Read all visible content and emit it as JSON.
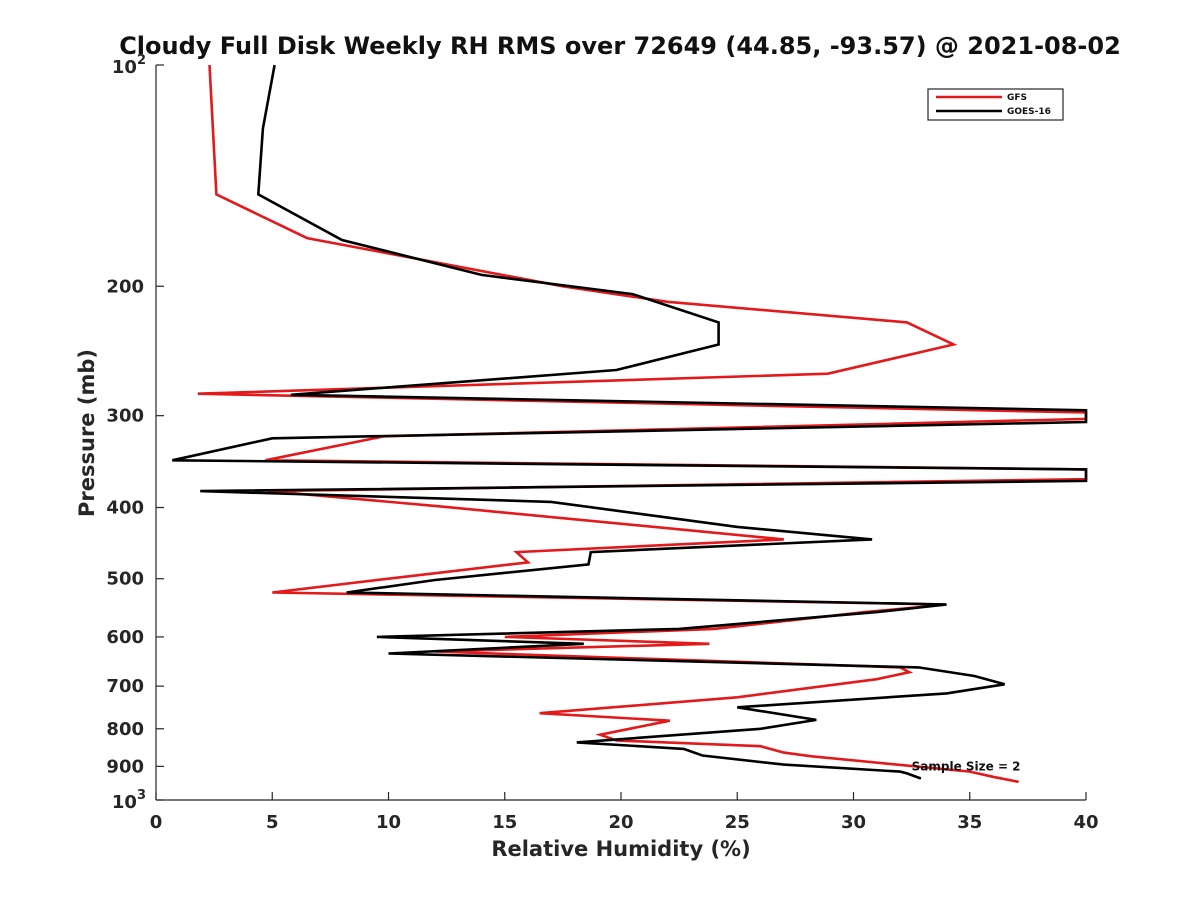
{
  "chart_data": {
    "type": "line",
    "title": "Cloudy Full Disk Weekly RH RMS over 72649 (44.85, -93.57) @ 2021-08-02",
    "xlabel": "Relative Humidity (%)",
    "ylabel": "Pressure (mb)",
    "xlim": [
      0,
      40
    ],
    "ylim": [
      100,
      1000
    ],
    "y_scale": "log",
    "y_reversed": true,
    "grid": false,
    "legend_position": "top-right",
    "x_ticks": [
      "0",
      "5",
      "10",
      "15",
      "20",
      "25",
      "30",
      "35",
      "40"
    ],
    "y_ticks": [
      {
        "value": 200,
        "label": "200"
      },
      {
        "value": 300,
        "label": "300"
      },
      {
        "value": 400,
        "label": "400"
      },
      {
        "value": 500,
        "label": "500"
      },
      {
        "value": 600,
        "label": "600"
      },
      {
        "value": 700,
        "label": "700"
      },
      {
        "value": 800,
        "label": "800"
      },
      {
        "value": 900,
        "label": "900"
      }
    ],
    "y_ticks_power": [
      {
        "value": 100,
        "base": "10",
        "exp": "2"
      },
      {
        "value": 1000,
        "base": "10",
        "exp": "3"
      }
    ],
    "annotation": {
      "text": "Sample Size = 2",
      "x": 32.5,
      "y": 900
    },
    "series": [
      {
        "name": "GFS",
        "color": "#e31a1c",
        "points": [
          [
            2.3,
            100
          ],
          [
            2.6,
            150
          ],
          [
            6.5,
            172
          ],
          [
            17.5,
            200
          ],
          [
            22.0,
            210
          ],
          [
            32.3,
            224
          ],
          [
            34.3,
            240
          ],
          [
            28.9,
            263
          ],
          [
            1.8,
            280
          ],
          [
            40,
            297
          ],
          [
            40,
            303
          ],
          [
            9.8,
            320
          ],
          [
            4.7,
            345
          ],
          [
            40,
            355
          ],
          [
            40,
            366
          ],
          [
            4.8,
            380
          ],
          [
            12.0,
            398
          ],
          [
            27.0,
            442
          ],
          [
            15.5,
            460
          ],
          [
            16.0,
            475
          ],
          [
            10.0,
            500
          ],
          [
            5.0,
            522
          ],
          [
            34.0,
            542
          ],
          [
            30.5,
            555
          ],
          [
            24.0,
            585
          ],
          [
            15.0,
            600
          ],
          [
            23.8,
            613
          ],
          [
            12.0,
            628
          ],
          [
            32.0,
            660
          ],
          [
            32.4,
            670
          ],
          [
            31.0,
            685
          ],
          [
            25.0,
            725
          ],
          [
            16.5,
            762
          ],
          [
            22.1,
            780
          ],
          [
            19.1,
            815
          ],
          [
            19.8,
            830
          ],
          [
            26.0,
            845
          ],
          [
            27.0,
            862
          ],
          [
            28.2,
            872
          ],
          [
            35.0,
            915
          ],
          [
            36.0,
            930
          ],
          [
            37.1,
            945
          ]
        ]
      },
      {
        "name": "GOES-16",
        "color": "#000000",
        "points": [
          [
            5.1,
            100
          ],
          [
            4.6,
            122
          ],
          [
            4.4,
            150
          ],
          [
            8.0,
            173
          ],
          [
            14.0,
            193
          ],
          [
            20.5,
            205
          ],
          [
            24.2,
            224
          ],
          [
            24.2,
            240
          ],
          [
            19.8,
            260
          ],
          [
            5.8,
            281
          ],
          [
            40,
            295
          ],
          [
            40,
            306
          ],
          [
            5.0,
            322
          ],
          [
            0.7,
            345
          ],
          [
            40,
            355
          ],
          [
            40,
            368
          ],
          [
            1.9,
            380
          ],
          [
            17.0,
            393
          ],
          [
            25.0,
            425
          ],
          [
            30.8,
            442
          ],
          [
            18.7,
            460
          ],
          [
            18.6,
            478
          ],
          [
            12.0,
            502
          ],
          [
            8.2,
            522
          ],
          [
            34.0,
            542
          ],
          [
            31.0,
            555
          ],
          [
            22.5,
            585
          ],
          [
            9.5,
            600
          ],
          [
            18.4,
            613
          ],
          [
            10.0,
            632
          ],
          [
            32.8,
            660
          ],
          [
            35.2,
            678
          ],
          [
            36.5,
            696
          ],
          [
            34.0,
            716
          ],
          [
            25.0,
            748
          ],
          [
            28.4,
            778
          ],
          [
            26.0,
            800
          ],
          [
            18.1,
            835
          ],
          [
            22.7,
            852
          ],
          [
            23.5,
            870
          ],
          [
            27.0,
            895
          ],
          [
            32.0,
            915
          ],
          [
            32.3,
            920
          ],
          [
            32.9,
            935
          ]
        ]
      }
    ]
  }
}
